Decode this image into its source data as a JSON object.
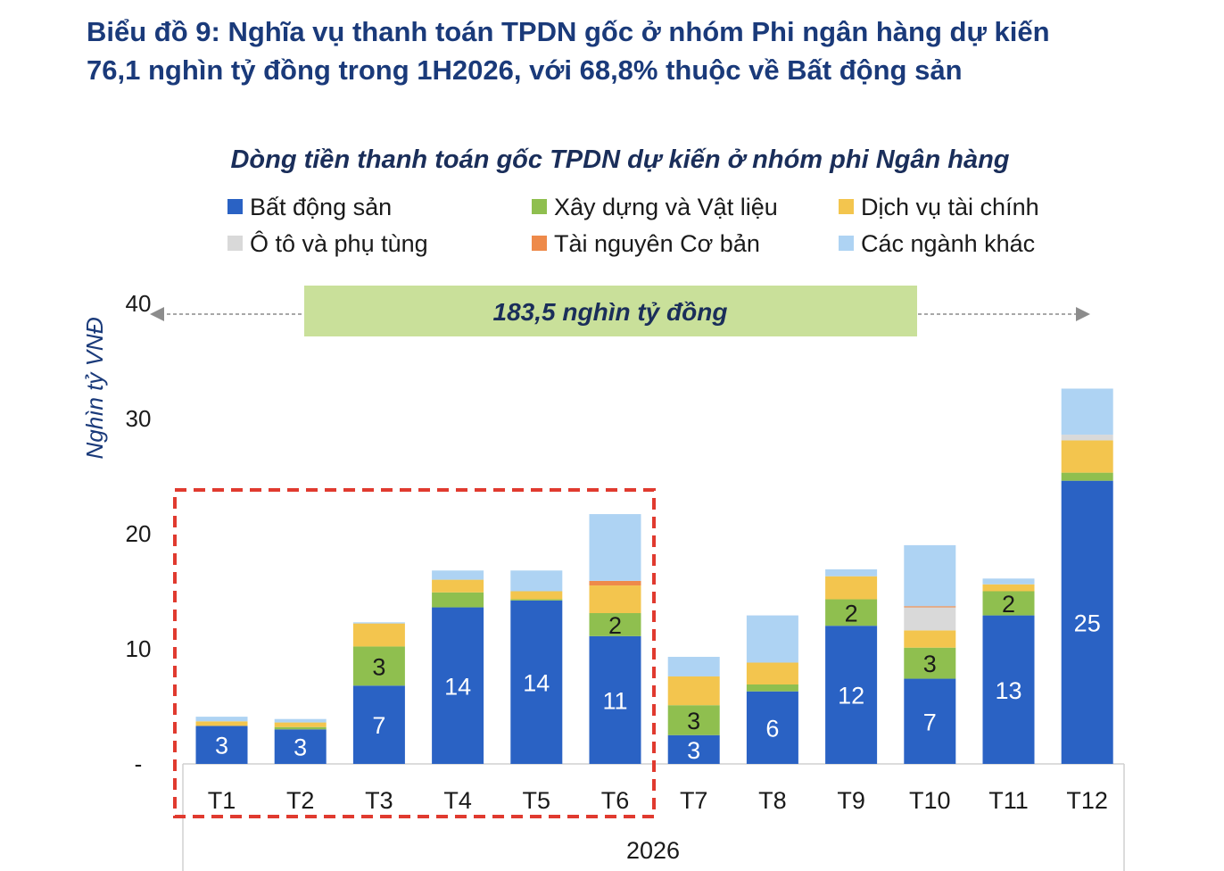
{
  "heading": {
    "line1": "Biểu đồ 9: Nghĩa vụ thanh toán TPDN gốc ở nhóm Phi ngân hàng dự kiến",
    "line2": "76,1 nghìn tỷ đồng trong 1H2026, với 68,8% thuộc về Bất động sản"
  },
  "banner": {
    "text": "183,5 nghìn tỷ đồng"
  },
  "chart_data": {
    "type": "bar",
    "stacked": true,
    "title": "Dòng tiền thanh toán gốc TPDN dự kiến ở nhóm phi Ngân hàng",
    "ylabel": "Nghìn tỷ VNĐ",
    "xlabel": "2026",
    "ylim": [
      0,
      40
    ],
    "yticks": [
      {
        "value": 0,
        "label": "-"
      },
      {
        "value": 10,
        "label": "10"
      },
      {
        "value": 20,
        "label": "20"
      },
      {
        "value": 30,
        "label": "30"
      },
      {
        "value": 40,
        "label": "40"
      }
    ],
    "legend_position": "top",
    "categories": [
      "T1",
      "T2",
      "T3",
      "T4",
      "T5",
      "T6",
      "T7",
      "T8",
      "T9",
      "T10",
      "T11",
      "T12"
    ],
    "series": [
      {
        "name": "Bất động sản",
        "color": "#2a62c4",
        "label_color": "#ffffff",
        "values": [
          3.3,
          3.0,
          6.8,
          13.6,
          14.2,
          11.1,
          2.5,
          6.3,
          12.0,
          7.4,
          12.9,
          24.6
        ]
      },
      {
        "name": "Xây dựng và Vật liệu",
        "color": "#8fbf4f",
        "label_color": "#1a1a1a",
        "values": [
          0.0,
          0.2,
          3.4,
          1.3,
          0.1,
          2.0,
          2.6,
          0.6,
          2.3,
          2.7,
          2.1,
          0.7
        ]
      },
      {
        "name": "Dịch vụ tài chính",
        "color": "#f3c54e",
        "label_color": "#1a1a1a",
        "values": [
          0.4,
          0.4,
          2.0,
          1.1,
          0.7,
          2.4,
          2.5,
          1.9,
          2.0,
          1.5,
          0.6,
          2.8
        ]
      },
      {
        "name": "Ô tô và phụ tùng",
        "color": "#d9d9d9",
        "label_color": "#1a1a1a",
        "values": [
          0,
          0,
          0,
          0,
          0,
          0,
          0,
          0,
          0,
          2.0,
          0,
          0.5
        ]
      },
      {
        "name": "Tài nguyên Cơ bản",
        "color": "#ee8a4a",
        "label_color": "#1a1a1a",
        "values": [
          0,
          0,
          0,
          0,
          0,
          0.4,
          0,
          0,
          0,
          0.1,
          0,
          0
        ]
      },
      {
        "name": "Các ngành khác",
        "color": "#aed3f3",
        "label_color": "#1a1a1a",
        "values": [
          0.4,
          0.3,
          0.1,
          0.8,
          1.8,
          5.8,
          1.7,
          4.1,
          0.6,
          5.3,
          0.5,
          4.0
        ]
      }
    ],
    "data_labels": [
      {
        "category": 0,
        "series": 0,
        "text": "3"
      },
      {
        "category": 1,
        "series": 0,
        "text": "3"
      },
      {
        "category": 2,
        "series": 0,
        "text": "7"
      },
      {
        "category": 2,
        "series": 1,
        "text": "3"
      },
      {
        "category": 3,
        "series": 0,
        "text": "14"
      },
      {
        "category": 4,
        "series": 0,
        "text": "14"
      },
      {
        "category": 5,
        "series": 0,
        "text": "11"
      },
      {
        "category": 5,
        "series": 1,
        "text": "2"
      },
      {
        "category": 6,
        "series": 0,
        "text": "3"
      },
      {
        "category": 6,
        "series": 1,
        "text": "3"
      },
      {
        "category": 7,
        "series": 0,
        "text": "6"
      },
      {
        "category": 8,
        "series": 0,
        "text": "12"
      },
      {
        "category": 8,
        "series": 1,
        "text": "2"
      },
      {
        "category": 9,
        "series": 0,
        "text": "7"
      },
      {
        "category": 9,
        "series": 1,
        "text": "3"
      },
      {
        "category": 10,
        "series": 0,
        "text": "13"
      },
      {
        "category": 10,
        "series": 1,
        "text": "2"
      },
      {
        "category": 11,
        "series": 0,
        "text": "25"
      }
    ],
    "highlight": {
      "from": "T1",
      "to": "T6",
      "color": "#e03a2f"
    },
    "banner_color": "#c9e09a"
  }
}
